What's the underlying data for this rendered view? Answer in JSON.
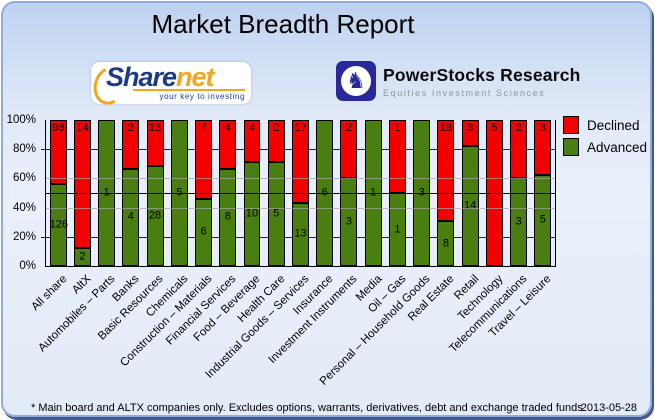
{
  "panel": {
    "title": "Market Breadth Report",
    "footnote": "* Main board and ALTX companies only. Excludes options, warrants, derivatives, debt and exchange traded funds",
    "date": "2013-05-28"
  },
  "logos": {
    "sharenet": {
      "brand_blue_text": "Share",
      "brand_orange_text": "net",
      "tagline": "your key to investing"
    },
    "powerstocks": {
      "title": "PowerStocks Research",
      "subtitle": "Equities Investment Sciences",
      "icon": "chess-knight-icon"
    }
  },
  "chart_data": {
    "type": "bar",
    "stacked": true,
    "title": "Market Breadth Report",
    "xlabel": "",
    "ylabel": "",
    "ylim": [
      0,
      100
    ],
    "y_ticks": [
      "100%",
      "80%",
      "60%",
      "40%",
      "20%",
      "0%"
    ],
    "gridlines": {
      "navy_pct": [
        20,
        80
      ],
      "gray_pct": [
        40,
        60
      ],
      "reference_black_pct": 50
    },
    "legend_position": "top-right",
    "value_labels": "company counts shown inside segments",
    "categories": [
      "All share",
      "AltX",
      "Automobiles – Parts",
      "Banks",
      "Basic Resources",
      "Chemicals",
      "Construction – Materials",
      "Financial Services",
      "Food – Beverage",
      "Health Care",
      "Industrial Goods – Services",
      "Insurance",
      "Investment Instruments",
      "Media",
      "Oil – Gas",
      "Personal – Household Goods",
      "Real Estate",
      "Retail",
      "Technology",
      "Telecommunications",
      "Travel – Leisure"
    ],
    "series": [
      {
        "name": "Declined",
        "color": "#f40000",
        "values": [
          98,
          14,
          0,
          2,
          13,
          0,
          7,
          4,
          4,
          2,
          17,
          0,
          2,
          0,
          1,
          0,
          18,
          3,
          5,
          2,
          3
        ]
      },
      {
        "name": "Advanced",
        "color": "#4a7e10",
        "values": [
          126,
          2,
          1,
          4,
          28,
          5,
          6,
          8,
          10,
          5,
          13,
          6,
          3,
          1,
          1,
          3,
          8,
          14,
          0,
          3,
          5
        ]
      }
    ]
  }
}
